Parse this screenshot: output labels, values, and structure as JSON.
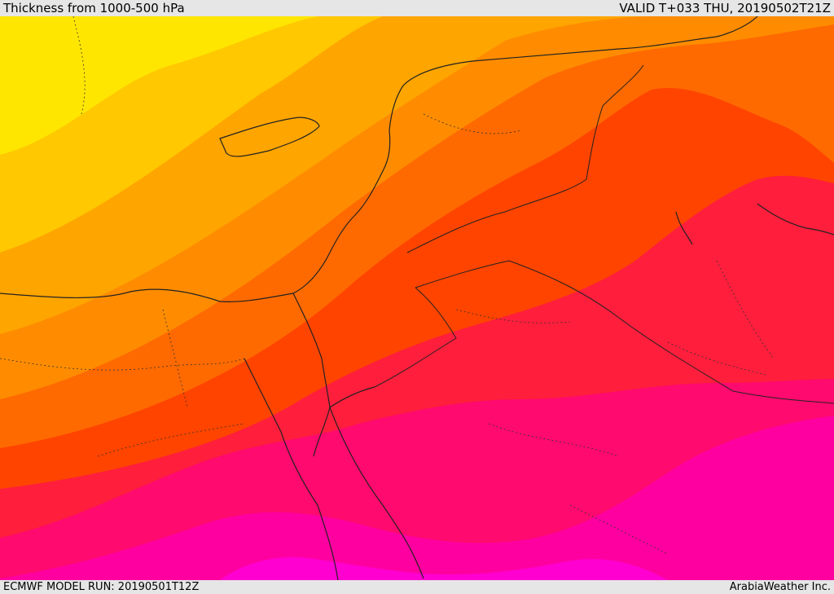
{
  "header": {
    "title": "Thickness from 1000-500 hPa",
    "valid": "VALID T+033 THU, 20190502T21Z"
  },
  "footer": {
    "model_run": "ECMWF MODEL RUN: 20190501T12Z",
    "credit": "ArabiaWeather Inc."
  },
  "map": {
    "field": "1000-500 hPa thickness",
    "palette": [
      "#ffe600",
      "#ffc800",
      "#ffa500",
      "#ff8c00",
      "#ff6a00",
      "#ff4400",
      "#ff1e3c",
      "#ff0a6e",
      "#ff00a0",
      "#ff00d0"
    ]
  }
}
